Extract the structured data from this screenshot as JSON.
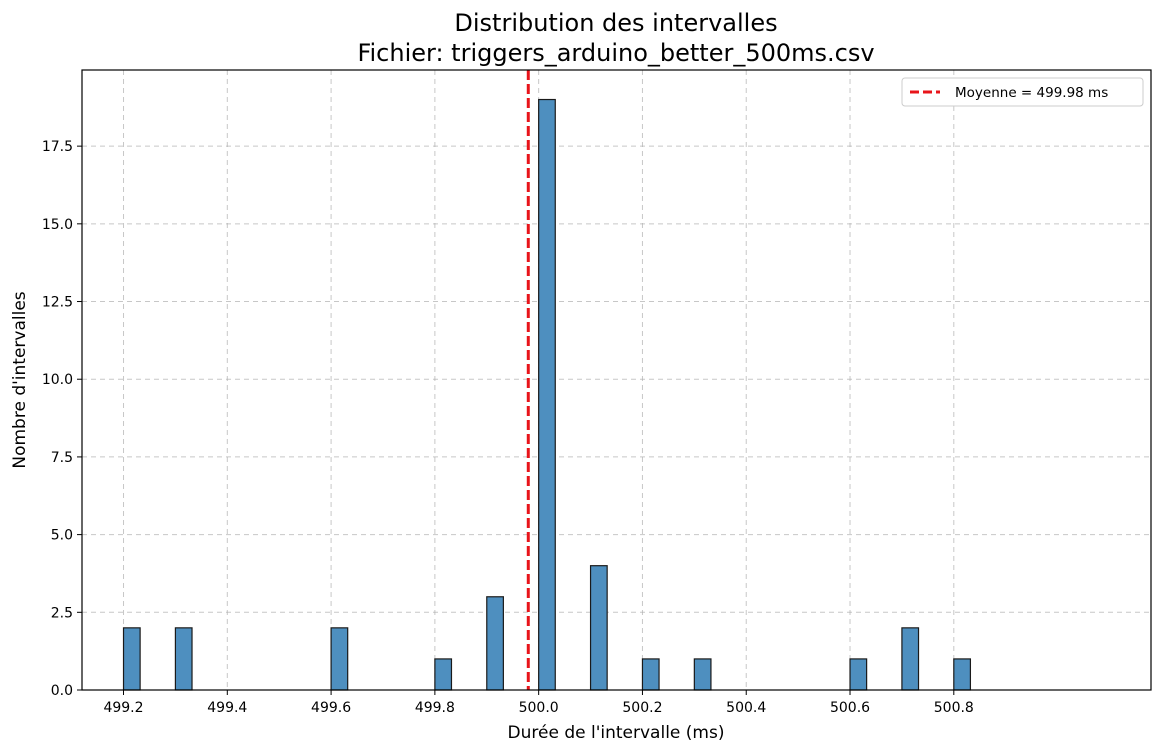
{
  "chart_data": {
    "type": "bar",
    "title_lines": [
      "Distribution des intervalles",
      "Fichier: triggers_arduino_better_500ms.csv"
    ],
    "xlabel": "Durée de l'intervalle (ms)",
    "ylabel": "Nombre d'intervalles",
    "xlim": [
      499.12,
      501.18
    ],
    "ylim": [
      0,
      19.95
    ],
    "grid": true,
    "xticks": [
      499.2,
      499.4,
      499.6,
      499.8,
      500.0,
      500.2,
      500.4,
      500.6,
      500.8
    ],
    "xtick_labels": [
      "499.2",
      "499.4",
      "499.6",
      "499.8",
      "500.0",
      "500.2",
      "500.4",
      "500.6",
      "500.8"
    ],
    "yticks": [
      0,
      2.5,
      5,
      7.5,
      10,
      12.5,
      15,
      17.5
    ],
    "ytick_labels": [
      "0.0",
      "2.5",
      "5.0",
      "7.5",
      "10.0",
      "12.5",
      "15.0",
      "17.5"
    ],
    "bin_width": 0.032,
    "bins": [
      {
        "x": 499.2,
        "count": 2
      },
      {
        "x": 499.3,
        "count": 2
      },
      {
        "x": 499.6,
        "count": 2
      },
      {
        "x": 499.8,
        "count": 1
      },
      {
        "x": 499.9,
        "count": 3
      },
      {
        "x": 500.0,
        "count": 19
      },
      {
        "x": 500.1,
        "count": 4
      },
      {
        "x": 500.2,
        "count": 1
      },
      {
        "x": 500.3,
        "count": 1
      },
      {
        "x": 500.6,
        "count": 1
      },
      {
        "x": 500.7,
        "count": 2
      },
      {
        "x": 500.8,
        "count": 1
      }
    ],
    "mean_line": {
      "value": 499.98,
      "label": "Moyenne = 499.98 ms",
      "color": "#e8141a"
    },
    "bar_color": "#4e8fbf",
    "bar_edge_color": "#1a1a1a",
    "legend_position": "top-right"
  }
}
